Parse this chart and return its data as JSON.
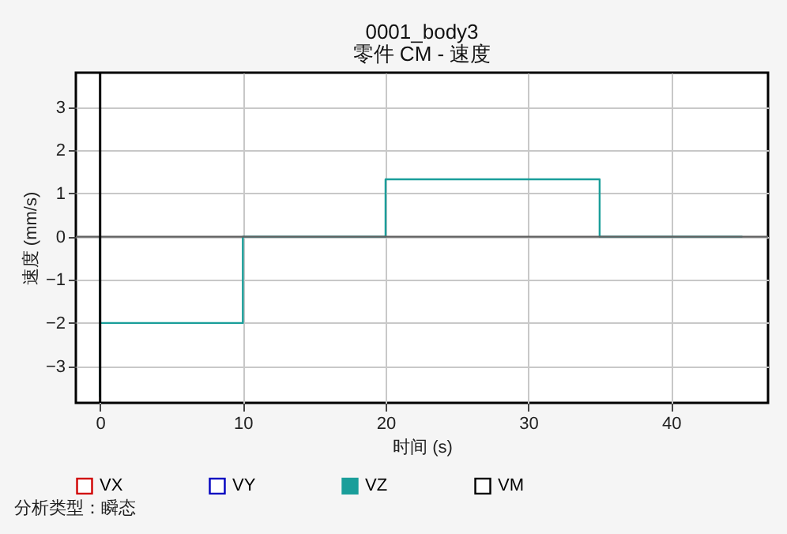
{
  "chart_data": {
    "type": "line",
    "title": "0001_body3",
    "subtitle": "零件 CM - 速度",
    "xlabel": "时间 (s)",
    "ylabel": "速度 (mm/s)",
    "annotations": [
      "分析类型：瞬态"
    ],
    "xlim": [
      -1.7,
      46.8
    ],
    "ylim": [
      -3.85,
      3.8
    ],
    "xticks": [
      0,
      10,
      20,
      30,
      40
    ],
    "yticks": [
      -3,
      -2,
      -1,
      0,
      1,
      2,
      3
    ],
    "grid": true,
    "legend": "bottom",
    "marker": "none",
    "line_style": "solid",
    "ref_lines": [
      {
        "axis": "y",
        "value": 0,
        "color": "#606060"
      },
      {
        "axis": "x",
        "value": 0,
        "color": "#000000"
      }
    ],
    "series": [
      {
        "name": "VX",
        "color": "#d00000"
      },
      {
        "name": "VY",
        "color": "#0000c0"
      },
      {
        "name": "VZ",
        "color": "#1a9e9a",
        "x": [
          0,
          0,
          0,
          10,
          10,
          20,
          20,
          35,
          35,
          45
        ],
        "values": [
          0,
          -3.7,
          -2,
          -2,
          0,
          0,
          1.33,
          1.33,
          0,
          0
        ]
      },
      {
        "name": "VM",
        "color": "#000000"
      }
    ]
  }
}
